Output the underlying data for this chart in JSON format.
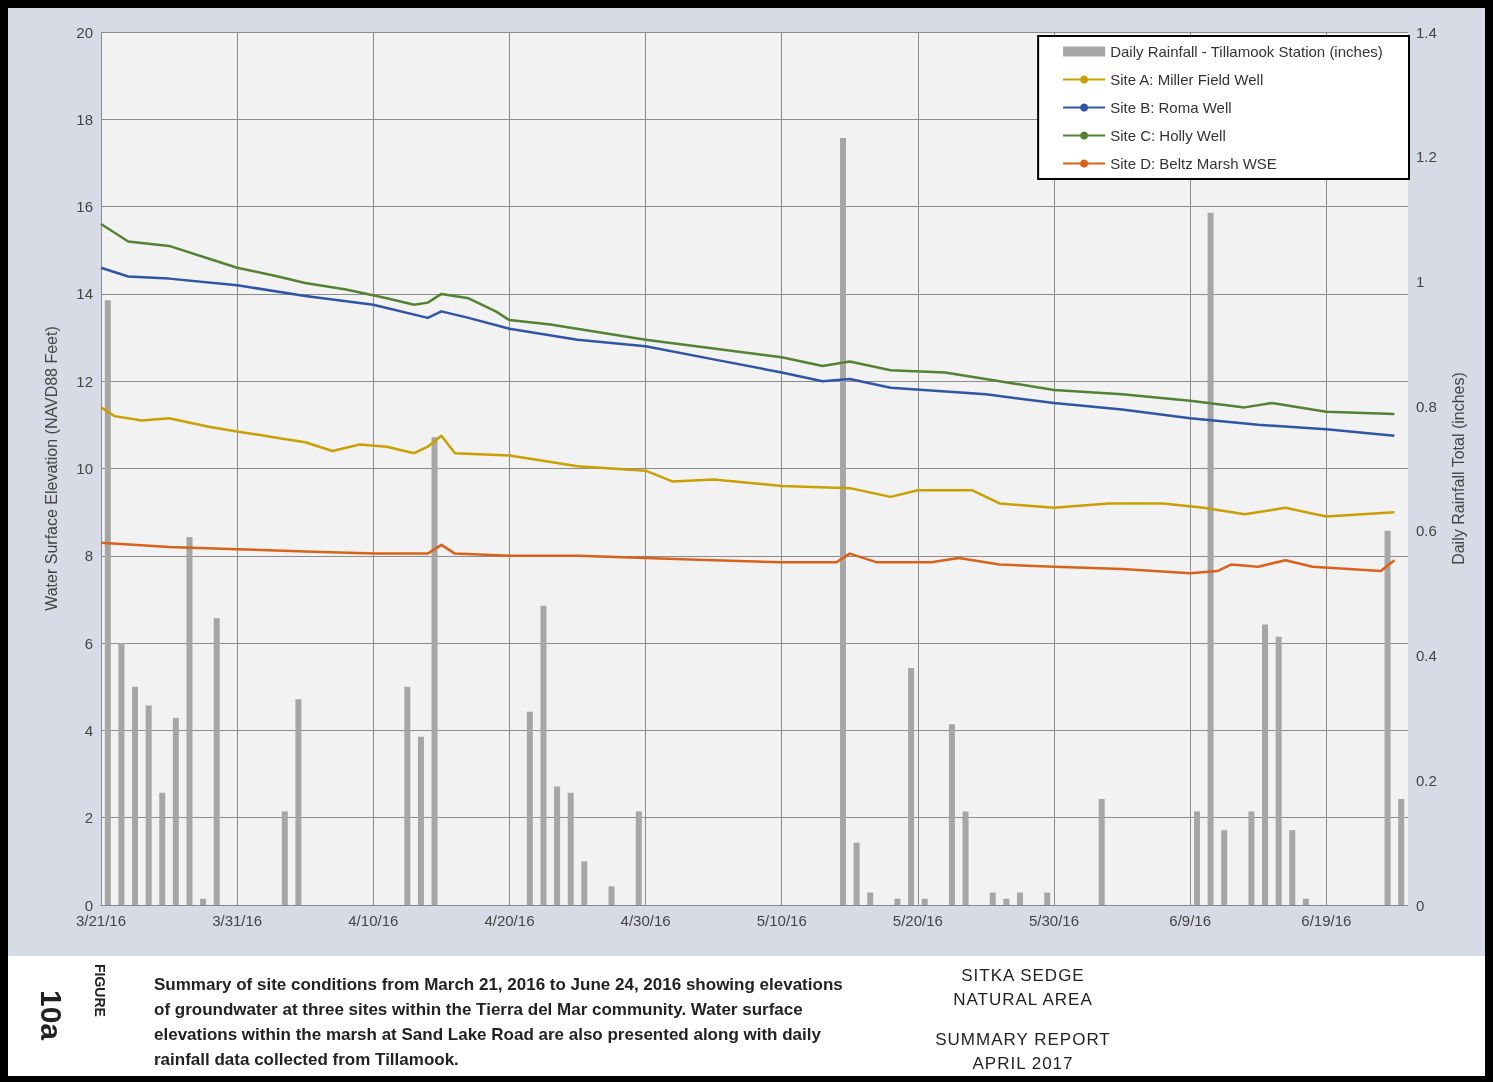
{
  "chart_data": {
    "type": "line",
    "ylabel": "Water Surface Elevation (NAVD88 Feet)",
    "y2label": "Daily Rainfall Total (inches)",
    "xlim": [
      "2016-03-21",
      "2016-06-25"
    ],
    "xticks": [
      {
        "value": "2016-03-21",
        "label": "3/21/16"
      },
      {
        "value": "2016-03-31",
        "label": "3/31/16"
      },
      {
        "value": "2016-04-10",
        "label": "4/10/16"
      },
      {
        "value": "2016-04-20",
        "label": "4/20/16"
      },
      {
        "value": "2016-04-30",
        "label": "4/30/16"
      },
      {
        "value": "2016-05-10",
        "label": "5/10/16"
      },
      {
        "value": "2016-05-20",
        "label": "5/20/16"
      },
      {
        "value": "2016-05-30",
        "label": "5/30/16"
      },
      {
        "value": "2016-06-09",
        "label": "6/9/16"
      },
      {
        "value": "2016-06-19",
        "label": "6/19/16"
      }
    ],
    "ylim": [
      0,
      20
    ],
    "yticks": [
      0,
      2,
      4,
      6,
      8,
      10,
      12,
      14,
      16,
      18,
      20
    ],
    "y2lim": [
      0,
      1.4
    ],
    "y2ticks": [
      0,
      0.2,
      0.4,
      0.6,
      0.8,
      1,
      1.2,
      1.4
    ],
    "grid": true,
    "legend": "top right",
    "marker": "none",
    "line_style": "solid",
    "series": [
      {
        "name": "Daily Rainfall - Tillamook Station (inches)",
        "type": "bar",
        "axis": "y2",
        "color": "#a6a6a6",
        "x": [
          "2016-03-21T12:00",
          "2016-03-22T12:00",
          "2016-03-23T12:00",
          "2016-03-24T12:00",
          "2016-03-25T12:00",
          "2016-03-26T12:00",
          "2016-03-27T12:00",
          "2016-03-28T12:00",
          "2016-03-29T12:00",
          "2016-04-03T12:00",
          "2016-04-04T12:00",
          "2016-04-12T12:00",
          "2016-04-13T12:00",
          "2016-04-14T12:00",
          "2016-04-21T12:00",
          "2016-04-22T12:00",
          "2016-04-23T12:00",
          "2016-04-24T12:00",
          "2016-04-25T12:00",
          "2016-04-27T12:00",
          "2016-04-29T12:00",
          "2016-05-14T12:00",
          "2016-05-15T12:00",
          "2016-05-16T12:00",
          "2016-05-18T12:00",
          "2016-05-19T12:00",
          "2016-05-20T12:00",
          "2016-05-22T12:00",
          "2016-05-23T12:00",
          "2016-05-25T12:00",
          "2016-05-26T12:00",
          "2016-05-27T12:00",
          "2016-05-29T12:00",
          "2016-06-02T12:00",
          "2016-06-09T12:00",
          "2016-06-10T12:00",
          "2016-06-11T12:00",
          "2016-06-13T12:00",
          "2016-06-14T12:00",
          "2016-06-15T12:00",
          "2016-06-16T12:00",
          "2016-06-17T12:00",
          "2016-06-23T12:00",
          "2016-06-24T12:00"
        ],
        "values": [
          0.97,
          0.42,
          0.35,
          0.32,
          0.18,
          0.3,
          0.59,
          0.01,
          0.46,
          0.15,
          0.33,
          0.35,
          0.27,
          0.75,
          0.31,
          0.48,
          0.19,
          0.18,
          0.07,
          0.03,
          0.15,
          1.23,
          0.1,
          0.02,
          0.01,
          0.38,
          0.01,
          0.29,
          0.15,
          0.02,
          0.01,
          0.02,
          0.02,
          0.17,
          0.15,
          1.11,
          0.12,
          0.15,
          0.45,
          0.43,
          0.12,
          0.01,
          0.6,
          0.17
        ]
      },
      {
        "name": "Site A: Miller Field Well",
        "color": "#c9a000",
        "x": [
          "2016-03-21",
          "2016-03-22",
          "2016-03-24",
          "2016-03-26",
          "2016-03-29",
          "2016-03-31",
          "2016-04-03",
          "2016-04-05",
          "2016-04-07",
          "2016-04-09",
          "2016-04-11",
          "2016-04-13",
          "2016-04-14",
          "2016-04-15",
          "2016-04-16",
          "2016-04-20",
          "2016-04-22",
          "2016-04-25",
          "2016-04-30",
          "2016-05-02",
          "2016-05-05",
          "2016-05-10",
          "2016-05-15",
          "2016-05-18",
          "2016-05-20",
          "2016-05-24",
          "2016-05-26",
          "2016-05-30",
          "2016-06-03",
          "2016-06-07",
          "2016-06-10",
          "2016-06-13",
          "2016-06-16",
          "2016-06-19",
          "2016-06-24"
        ],
        "values": [
          11.4,
          11.2,
          11.1,
          11.15,
          10.95,
          10.85,
          10.7,
          10.6,
          10.4,
          10.55,
          10.5,
          10.35,
          10.5,
          10.75,
          10.35,
          10.3,
          10.2,
          10.05,
          9.95,
          9.7,
          9.75,
          9.6,
          9.55,
          9.35,
          9.5,
          9.5,
          9.2,
          9.1,
          9.2,
          9.2,
          9.1,
          8.95,
          9.1,
          8.9,
          9.0
        ]
      },
      {
        "name": "Site B: Roma Well",
        "color": "#2f55a4",
        "x": [
          "2016-03-21",
          "2016-03-23",
          "2016-03-26",
          "2016-03-31",
          "2016-04-05",
          "2016-04-10",
          "2016-04-14",
          "2016-04-15",
          "2016-04-17",
          "2016-04-20",
          "2016-04-25",
          "2016-04-30",
          "2016-05-05",
          "2016-05-10",
          "2016-05-13",
          "2016-05-15",
          "2016-05-18",
          "2016-05-25",
          "2016-05-30",
          "2016-06-04",
          "2016-06-09",
          "2016-06-14",
          "2016-06-19",
          "2016-06-24"
        ],
        "values": [
          14.6,
          14.4,
          14.35,
          14.2,
          13.95,
          13.75,
          13.45,
          13.6,
          13.45,
          13.2,
          12.95,
          12.8,
          12.5,
          12.2,
          12.0,
          12.05,
          11.85,
          11.7,
          11.5,
          11.35,
          11.15,
          11.0,
          10.9,
          10.75
        ]
      },
      {
        "name": "Site C: Holly Well",
        "color": "#548235",
        "x": [
          "2016-03-21",
          "2016-03-23",
          "2016-03-26",
          "2016-03-29",
          "2016-03-31",
          "2016-04-03",
          "2016-04-05",
          "2016-04-08",
          "2016-04-11",
          "2016-04-13",
          "2016-04-14",
          "2016-04-15",
          "2016-04-17",
          "2016-04-19",
          "2016-04-20",
          "2016-04-23",
          "2016-04-26",
          "2016-04-30",
          "2016-05-05",
          "2016-05-10",
          "2016-05-13",
          "2016-05-14",
          "2016-05-15",
          "2016-05-18",
          "2016-05-22",
          "2016-05-26",
          "2016-05-30",
          "2016-06-04",
          "2016-06-09",
          "2016-06-13",
          "2016-06-15",
          "2016-06-19",
          "2016-06-24"
        ],
        "values": [
          15.6,
          15.2,
          15.1,
          14.8,
          14.6,
          14.4,
          14.25,
          14.1,
          13.9,
          13.75,
          13.8,
          14.0,
          13.9,
          13.6,
          13.4,
          13.3,
          13.15,
          12.95,
          12.75,
          12.55,
          12.35,
          12.4,
          12.45,
          12.25,
          12.2,
          12.0,
          11.8,
          11.7,
          11.55,
          11.4,
          11.5,
          11.3,
          11.25
        ]
      },
      {
        "name": "Site D: Beltz Marsh WSE",
        "color": "#d9621a",
        "x": [
          "2016-03-21",
          "2016-03-26",
          "2016-03-31",
          "2016-04-05",
          "2016-04-10",
          "2016-04-14",
          "2016-04-15",
          "2016-04-16",
          "2016-04-20",
          "2016-04-25",
          "2016-04-30",
          "2016-05-05",
          "2016-05-10",
          "2016-05-14",
          "2016-05-15",
          "2016-05-17",
          "2016-05-21",
          "2016-05-23",
          "2016-05-26",
          "2016-05-30",
          "2016-06-04",
          "2016-06-09",
          "2016-06-11",
          "2016-06-12",
          "2016-06-14",
          "2016-06-16",
          "2016-06-18",
          "2016-06-23",
          "2016-06-24"
        ],
        "values": [
          8.3,
          8.2,
          8.15,
          8.1,
          8.05,
          8.05,
          8.25,
          8.05,
          8.0,
          8.0,
          7.95,
          7.9,
          7.85,
          7.85,
          8.05,
          7.85,
          7.85,
          7.95,
          7.8,
          7.75,
          7.7,
          7.6,
          7.65,
          7.8,
          7.75,
          7.9,
          7.75,
          7.65,
          7.9
        ]
      }
    ],
    "annotations": [
      "FIGURE",
      "10a",
      "Summary of site conditions from March 21, 2016 to June 24, 2016 showing elevations of groundwater at three sites within the Tierra del Mar community. Water surface elevations within the marsh at Sand Lake Road are also presented along with daily rainfall data collected from Tillamook.",
      "SITKA SEDGE NATURAL AREA",
      "SUMMARY REPORT",
      "APRIL 2017"
    ]
  }
}
